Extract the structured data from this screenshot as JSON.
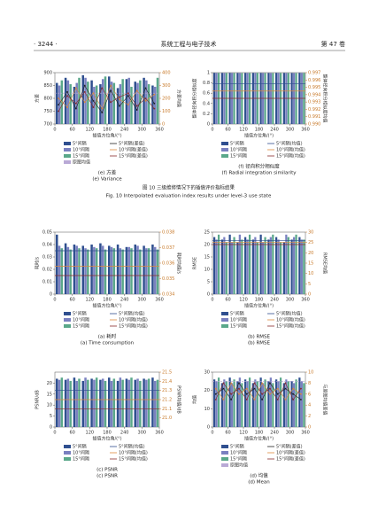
{
  "header": {
    "left": "· 3244 ·",
    "center": "系统工程与电子技术",
    "right": "第 47 卷"
  },
  "figure_caption": {
    "cn": "图 10  三级维修情况下的插值评价指标结果",
    "en": "Fig. 10  Interpolated evaluation index results under level-3 use state"
  },
  "chart_data": [
    {
      "type": "bar",
      "caption": "(e) 方差",
      "caption_en": "(e) Variance",
      "xlabel": "插值方位角/(°)",
      "ylabel": "方差",
      "y2label": "方差均值",
      "x": [
        0,
        30,
        60,
        90,
        120,
        150,
        180,
        210,
        240,
        270,
        300,
        330
      ],
      "xlim": [
        0,
        360
      ],
      "xticks": [
        0,
        60,
        120,
        180,
        240,
        300,
        360
      ],
      "ylim": [
        700,
        900
      ],
      "yticks": [
        700,
        750,
        800,
        850,
        900
      ],
      "y2lim": [
        0,
        400
      ],
      "y2ticks": [
        0,
        100,
        200,
        300,
        400
      ],
      "series": [
        {
          "name": "5°间隔",
          "color": "#2f4f8f",
          "values": [
            860,
            880,
            845,
            890,
            870,
            855,
            885,
            840,
            875,
            865,
            880,
            850
          ]
        },
        {
          "name": "10°间隔",
          "color": "#7a80c0",
          "values": [
            850,
            870,
            860,
            880,
            845,
            875,
            865,
            855,
            880,
            860,
            870,
            845
          ]
        },
        {
          "name": "15°间隔",
          "color": "#5aa88a",
          "values": [
            870,
            855,
            880,
            865,
            850,
            885,
            860,
            875,
            845,
            870,
            855,
            880
          ]
        },
        {
          "name": "原图均值",
          "color": "#b9a9d6",
          "value": 820
        },
        {
          "name": "5°间隔(差值)",
          "color": "#222222",
          "axis": "y2",
          "values": [
            150,
            250,
            120,
            300,
            180,
            90,
            260,
            140,
            220,
            110,
            280,
            160
          ]
        },
        {
          "name": "10°间隔(差值)",
          "color": "#e08a3c",
          "axis": "y2",
          "values": [
            200,
            130,
            280,
            170,
            240,
            120,
            300,
            190,
            150,
            260,
            180,
            230
          ]
        },
        {
          "name": "15°间隔(差值)",
          "color": "#8b2a2a",
          "axis": "y2",
          "values": [
            100,
            220,
            160,
            250,
            130,
            280,
            170,
            210,
            240,
            140,
            200,
            120
          ]
        }
      ]
    },
    {
      "type": "bar",
      "caption": "(f) 径向积分相似度",
      "caption_en": "(f) Radial integration similarity",
      "xlabel": "插值方位角/(°)",
      "ylabel": "整体径向积分相似度",
      "y2label": "整体径向积分相似度均值",
      "x": [
        0,
        30,
        60,
        90,
        120,
        150,
        180,
        210,
        240,
        270,
        300,
        330
      ],
      "xlim": [
        0,
        360
      ],
      "xticks": [
        0,
        60,
        120,
        180,
        240,
        300,
        360
      ],
      "ylim": [
        0,
        1
      ],
      "yticks": [
        0,
        0.2,
        0.4,
        0.6,
        0.8,
        1
      ],
      "y2lim": [
        0.99,
        0.997
      ],
      "y2ticks": [
        {
          "value": 0.99,
          "label": "0.990"
        },
        0.991,
        0.992,
        0.993,
        0.994,
        0.995,
        0.996,
        0.997
      ],
      "series": [
        {
          "name": "5°间隔",
          "color": "#2f4f8f",
          "values": [
            0.996,
            0.995,
            0.996,
            0.994,
            0.995,
            0.996,
            0.995,
            0.994,
            0.996,
            0.995,
            0.994,
            0.996
          ]
        },
        {
          "name": "10°间隔",
          "color": "#7a80c0",
          "values": [
            0.995,
            0.994,
            0.995,
            0.993,
            0.994,
            0.995,
            0.994,
            0.993,
            0.995,
            0.994,
            0.993,
            0.995
          ]
        },
        {
          "name": "15°间隔",
          "color": "#5aa88a",
          "values": [
            0.994,
            0.993,
            0.994,
            0.992,
            0.993,
            0.994,
            0.993,
            0.992,
            0.994,
            0.993,
            0.992,
            0.994
          ]
        },
        {
          "name": "5°间隔(均值)",
          "color": "#2f4f8f",
          "axis": "y2",
          "value": 0.9955
        },
        {
          "name": "10°间隔(均值)",
          "color": "#e08a3c",
          "axis": "y2",
          "value": 0.9945
        },
        {
          "name": "15°间隔(均值)",
          "color": "#8b2a2a",
          "axis": "y2",
          "value": 0.9935
        }
      ]
    },
    {
      "type": "bar",
      "caption": "(a) 耗时",
      "caption_en": "(a) Time consumption",
      "xlabel": "插值方位角/(°)",
      "ylabel": "耗时/s",
      "y2label": "耗时均值/s",
      "x": [
        0,
        30,
        60,
        90,
        120,
        150,
        180,
        210,
        240,
        270,
        300,
        330
      ],
      "xlim": [
        0,
        360
      ],
      "xticks": [
        0,
        60,
        120,
        180,
        240,
        300,
        360
      ],
      "ylim": [
        0,
        0.05
      ],
      "yticks": [
        0,
        0.01,
        0.02,
        0.03,
        0.04,
        0.05
      ],
      "y2lim": [
        0.034,
        0.038
      ],
      "y2ticks": [
        0.034,
        0.035,
        0.036,
        0.037,
        0.038
      ],
      "series": [
        {
          "name": "5°间隔",
          "color": "#2f4f8f",
          "values": [
            0.048,
            0.041,
            0.04,
            0.039,
            0.04,
            0.041,
            0.039,
            0.04,
            0.038,
            0.04,
            0.039,
            0.04
          ]
        },
        {
          "name": "10°间隔",
          "color": "#7a80c0",
          "values": [
            0.039,
            0.038,
            0.039,
            0.037,
            0.038,
            0.039,
            0.038,
            0.037,
            0.038,
            0.039,
            0.037,
            0.038
          ]
        },
        {
          "name": "15°间隔",
          "color": "#5aa88a",
          "values": [
            0.037,
            0.036,
            0.037,
            0.036,
            0.037,
            0.036,
            0.037,
            0.036,
            0.037,
            0.036,
            0.037,
            0.036
          ]
        },
        {
          "name": "5°间隔(均值)",
          "color": "#2f4f8f",
          "axis": "y2",
          "value": 0.0368
        },
        {
          "name": "10°间隔(均值)",
          "color": "#e08a3c",
          "axis": "y2",
          "value": 0.0358
        },
        {
          "name": "15°间隔(均值)",
          "color": "#8b2a2a",
          "axis": "y2",
          "value": 0.0352
        }
      ]
    },
    {
      "type": "bar",
      "caption": "(b) RMSE",
      "caption_en": "(b) RMSE",
      "xlabel": "插值方位角/(°)",
      "ylabel": "RMSE",
      "y2label": "RMSE均值",
      "x": [
        0,
        30,
        60,
        90,
        120,
        150,
        180,
        210,
        240,
        270,
        300,
        330
      ],
      "xlim": [
        0,
        360
      ],
      "xticks": [
        0,
        60,
        120,
        180,
        240,
        300,
        360
      ],
      "ylim": [
        0,
        25
      ],
      "yticks": [
        0,
        5,
        10,
        15,
        20,
        25
      ],
      "y2lim": [
        0,
        30
      ],
      "y2ticks": [
        0,
        5,
        10,
        15,
        20,
        25,
        30
      ],
      "series": [
        {
          "name": "5°间隔",
          "color": "#2f4f8f",
          "values": [
            23,
            22,
            24,
            21,
            23,
            22,
            24,
            22,
            23,
            21,
            22,
            23
          ]
        },
        {
          "name": "10°间隔",
          "color": "#7a80c0",
          "values": [
            22,
            23,
            21,
            24,
            22,
            23,
            21,
            23,
            22,
            24,
            23,
            22
          ]
        },
        {
          "name": "15°间隔",
          "color": "#5aa88a",
          "values": [
            24,
            21,
            23,
            22,
            24,
            21,
            23,
            24,
            21,
            23,
            24,
            22
          ]
        },
        {
          "name": "5°间隔(均值)",
          "color": "#2f4f8f",
          "axis": "y2",
          "value": 26
        },
        {
          "name": "10°间隔(均值)",
          "color": "#e08a3c",
          "axis": "y2",
          "value": 25
        },
        {
          "name": "15°间隔(均值)",
          "color": "#8b2a2a",
          "axis": "y2",
          "value": 24
        }
      ]
    },
    {
      "type": "bar",
      "caption": "(c) PSNR",
      "caption_en": "(c) PSNR",
      "xlabel": "插值方位角/(°)",
      "ylabel": "PSNR/dB",
      "y2label": "PSNR均值/dB",
      "x": [
        0,
        30,
        60,
        90,
        120,
        150,
        180,
        210,
        240,
        270,
        300,
        330
      ],
      "xlim": [
        0,
        360
      ],
      "xticks": [
        0,
        60,
        120,
        180,
        240,
        300,
        360
      ],
      "ylim": [
        0,
        25
      ],
      "yticks": [
        0,
        5,
        10,
        15,
        20
      ],
      "y2lim": [
        20.9,
        21.5
      ],
      "y2ticks": [
        {
          "value": 21,
          "label": "21.0"
        },
        21.1,
        21.2,
        21.3,
        21.4,
        21.5
      ],
      "series": [
        {
          "name": "5°间隔",
          "color": "#2f4f8f",
          "values": [
            22,
            21.5,
            22.5,
            21,
            22,
            21.5,
            22.5,
            21,
            22,
            21.5,
            22,
            22.5
          ]
        },
        {
          "name": "10°间隔",
          "color": "#7a80c0",
          "values": [
            21.5,
            22,
            21,
            22.5,
            21.5,
            22,
            21,
            22.5,
            21.5,
            22,
            21.5,
            21
          ]
        },
        {
          "name": "15°间隔",
          "color": "#5aa88a",
          "values": [
            22.5,
            21,
            22,
            21.5,
            22.5,
            21,
            22,
            21.5,
            22.5,
            21,
            22,
            21.5
          ]
        },
        {
          "name": "5°间隔(均值)",
          "color": "#2f4f8f",
          "axis": "y2",
          "value": 21.3
        },
        {
          "name": "10°间隔(均值)",
          "color": "#e08a3c",
          "axis": "y2",
          "value": 21.2
        },
        {
          "name": "15°间隔(均值)",
          "color": "#8b2a2a",
          "axis": "y2",
          "value": 21.1
        }
      ]
    },
    {
      "type": "bar",
      "caption": "(d) 均值",
      "caption_en": "(d) Mean",
      "xlabel": "插值方位角/(°)",
      "ylabel": "均值",
      "y2label": "与原图均值差值",
      "x": [
        0,
        30,
        60,
        90,
        120,
        150,
        180,
        210,
        240,
        270,
        300,
        330
      ],
      "xlim": [
        0,
        360
      ],
      "xticks": [
        0,
        60,
        120,
        180,
        240,
        300,
        360
      ],
      "ylim": [
        0,
        30
      ],
      "yticks": [
        0,
        10,
        20,
        30
      ],
      "y2lim": [
        0,
        10
      ],
      "y2ticks": [
        0,
        2,
        4,
        6,
        8,
        10
      ],
      "series": [
        {
          "name": "5°间隔",
          "color": "#2f4f8f",
          "values": [
            26,
            24,
            27,
            25,
            26,
            24,
            27,
            25,
            26,
            24,
            25,
            27
          ]
        },
        {
          "name": "10°间隔",
          "color": "#7a80c0",
          "values": [
            25,
            26,
            24,
            27,
            25,
            26,
            24,
            27,
            25,
            26,
            24,
            25
          ]
        },
        {
          "name": "15°间隔",
          "color": "#5aa88a",
          "values": [
            27,
            25,
            26,
            24,
            27,
            25,
            26,
            24,
            27,
            25,
            26,
            24
          ]
        },
        {
          "name": "原图均值",
          "color": "#b9a9d6",
          "value": 25
        },
        {
          "name": "5°间隔(差值)",
          "color": "#222222",
          "axis": "y2",
          "values": [
            6,
            7,
            5,
            8,
            6,
            7,
            5,
            8,
            6,
            7,
            6,
            5
          ]
        },
        {
          "name": "10°间隔(差值)",
          "color": "#e08a3c",
          "axis": "y2",
          "values": [
            7,
            5,
            8,
            6,
            7,
            5,
            8,
            6,
            7,
            5,
            7,
            6
          ]
        },
        {
          "name": "15°间隔(差值)",
          "color": "#8b2a2a",
          "axis": "y2",
          "values": [
            5,
            8,
            6,
            7,
            5,
            8,
            6,
            7,
            5,
            8,
            5,
            7
          ]
        }
      ]
    }
  ]
}
